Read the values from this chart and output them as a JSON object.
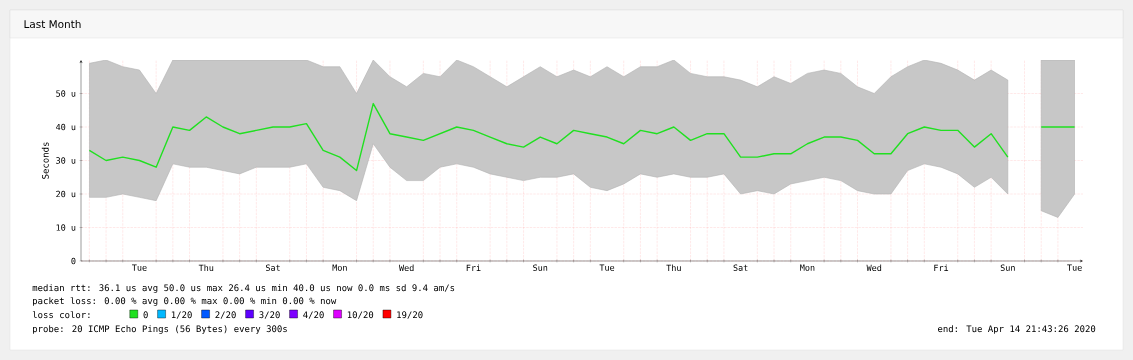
{
  "chart_data": {
    "type": "line",
    "title": "Last Month",
    "ylabel": "Seconds",
    "legend_title": "loss color:",
    "legend": "bottom",
    "grid": true,
    "ylim": [
      0,
      60
    ],
    "categories": [
      null,
      null,
      null,
      "Tue",
      null,
      null,
      null,
      "Thu",
      null,
      null,
      null,
      "Sat",
      null,
      null,
      null,
      "Mon",
      null,
      null,
      null,
      "Wed",
      null,
      null,
      null,
      "Fri",
      null,
      null,
      null,
      "Sun",
      null,
      null,
      null,
      "Tue",
      null,
      null,
      null,
      "Thu",
      null,
      null,
      null,
      "Sat",
      null,
      null,
      null,
      "Mon",
      null,
      null,
      null,
      "Wed",
      null,
      null,
      null,
      "Fri",
      null,
      null,
      null,
      "Sun",
      null,
      null,
      null,
      "Tue"
    ],
    "yticks": [
      0,
      {
        "value": 10,
        "label": "10 u"
      },
      {
        "value": 20,
        "label": "20 u"
      },
      {
        "value": 30,
        "label": "30 u"
      },
      {
        "value": 40,
        "label": "40 u"
      },
      {
        "value": 50,
        "label": "50 u"
      }
    ],
    "series": [
      {
        "name": "0",
        "color": "#20e020",
        "values": [
          33,
          30,
          31,
          30,
          28,
          40,
          39,
          43,
          40,
          38,
          39,
          40,
          40,
          41,
          33,
          31,
          27,
          47,
          38,
          37,
          36,
          38,
          40,
          39,
          37,
          35,
          34,
          37,
          35,
          39,
          38,
          37,
          35,
          39,
          38,
          40,
          36,
          38,
          38,
          31,
          31,
          32,
          32,
          35,
          37,
          37,
          36,
          32,
          32,
          38,
          40,
          39,
          39,
          34,
          38,
          31,
          null,
          40,
          40,
          40
        ],
        "lower": [
          19,
          19,
          20,
          19,
          18,
          29,
          28,
          28,
          27,
          26,
          28,
          28,
          28,
          29,
          22,
          21,
          18,
          35,
          28,
          24,
          24,
          28,
          29,
          28,
          26,
          25,
          24,
          25,
          25,
          26,
          22,
          21,
          23,
          26,
          25,
          26,
          25,
          25,
          26,
          20,
          21,
          20,
          23,
          24,
          25,
          24,
          21,
          20,
          20,
          27,
          29,
          28,
          26,
          22,
          25,
          20,
          null,
          15,
          13,
          20
        ],
        "upper": [
          59,
          60,
          58,
          57,
          50,
          60,
          60,
          60,
          60,
          60,
          60,
          60,
          60,
          60,
          58,
          58,
          50,
          60,
          55,
          52,
          56,
          55,
          60,
          58,
          55,
          52,
          55,
          58,
          55,
          57,
          55,
          58,
          55,
          58,
          58,
          60,
          56,
          55,
          55,
          54,
          52,
          55,
          53,
          56,
          57,
          56,
          52,
          50,
          55,
          58,
          60,
          59,
          57,
          54,
          57,
          54,
          null,
          60,
          60,
          60
        ]
      },
      {
        "name": "1/20",
        "color": "#00b8ff",
        "values": [
          null,
          null,
          null,
          null,
          null,
          null,
          null,
          null,
          null,
          null,
          null,
          null,
          null,
          null,
          null,
          null,
          null,
          null,
          null,
          null,
          null,
          null,
          null,
          null,
          null,
          null,
          null,
          null,
          null,
          null,
          null,
          null,
          null,
          null,
          null,
          null,
          null,
          null,
          null,
          null,
          null,
          null,
          null,
          null,
          null,
          null,
          null,
          null,
          null,
          null,
          null,
          null,
          null,
          null,
          null,
          null,
          null,
          null,
          null,
          null
        ]
      },
      {
        "name": "2/20",
        "color": "#0059ff",
        "values": [
          null,
          null,
          null,
          null,
          null,
          null,
          null,
          null,
          null,
          null,
          null,
          null,
          null,
          null,
          null,
          null,
          null,
          null,
          null,
          null,
          null,
          null,
          null,
          null,
          null,
          null,
          null,
          null,
          null,
          null,
          null,
          null,
          null,
          null,
          null,
          null,
          null,
          null,
          null,
          null,
          null,
          null,
          null,
          null,
          null,
          null,
          null,
          null,
          null,
          null,
          null,
          null,
          null,
          null,
          null,
          null,
          null,
          null,
          null,
          null
        ]
      },
      {
        "name": "3/20",
        "color": "#5e00ff",
        "values": [
          null,
          null,
          null,
          null,
          null,
          null,
          null,
          null,
          null,
          null,
          null,
          null,
          null,
          null,
          null,
          null,
          null,
          null,
          null,
          null,
          null,
          null,
          null,
          null,
          null,
          null,
          null,
          null,
          null,
          null,
          null,
          null,
          null,
          null,
          null,
          null,
          null,
          null,
          null,
          null,
          null,
          null,
          null,
          null,
          null,
          null,
          null,
          null,
          null,
          null,
          null,
          null,
          null,
          null,
          null,
          null,
          null,
          null,
          null,
          null
        ]
      },
      {
        "name": "4/20",
        "color": "#7e00ff",
        "values": [
          null,
          null,
          null,
          null,
          null,
          null,
          null,
          null,
          null,
          null,
          null,
          null,
          null,
          null,
          null,
          null,
          null,
          null,
          null,
          null,
          null,
          null,
          null,
          null,
          null,
          null,
          null,
          null,
          null,
          null,
          null,
          null,
          null,
          null,
          null,
          null,
          null,
          null,
          null,
          null,
          null,
          null,
          null,
          null,
          null,
          null,
          null,
          null,
          null,
          null,
          null,
          null,
          null,
          null,
          null,
          null,
          null,
          null,
          null,
          null
        ]
      },
      {
        "name": "10/20",
        "color": "#dd00ff",
        "values": [
          null,
          null,
          null,
          null,
          null,
          null,
          null,
          null,
          null,
          null,
          null,
          null,
          null,
          null,
          null,
          null,
          null,
          null,
          null,
          null,
          null,
          null,
          null,
          null,
          null,
          null,
          null,
          null,
          null,
          null,
          null,
          null,
          null,
          null,
          null,
          null,
          null,
          null,
          null,
          null,
          null,
          null,
          null,
          null,
          null,
          null,
          null,
          null,
          null,
          null,
          null,
          null,
          null,
          null,
          null,
          null,
          null,
          null,
          null,
          null
        ]
      },
      {
        "name": "19/20",
        "color": "#ff0000",
        "values": [
          null,
          null,
          null,
          null,
          null,
          null,
          null,
          null,
          null,
          null,
          null,
          null,
          null,
          null,
          null,
          null,
          null,
          null,
          null,
          null,
          null,
          null,
          null,
          null,
          null,
          null,
          null,
          null,
          null,
          null,
          null,
          null,
          null,
          null,
          null,
          null,
          null,
          null,
          null,
          null,
          null,
          null,
          null,
          null,
          null,
          null,
          null,
          null,
          null,
          null,
          null,
          null,
          null,
          null,
          null,
          null,
          null,
          null,
          null,
          null
        ]
      }
    ],
    "annotations": [
      "median rtt:  36.1 us avg  50.0 us max  26.4 us min  40.0 us now  0.0 ms sd  9.4   am/s",
      "packet loss: 0.00 % avg  0.00 % max  0.00 % min  0.00 % now",
      "probe:       20 ICMP Echo Pings (56 Bytes) every 300s",
      "end: Tue Apr 14 21:43:26 2020"
    ]
  }
}
